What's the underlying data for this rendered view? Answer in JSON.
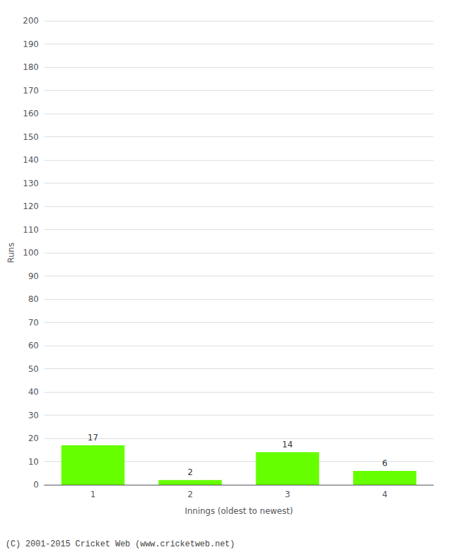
{
  "chart_data": {
    "type": "bar",
    "categories": [
      "1",
      "2",
      "3",
      "4"
    ],
    "values": [
      17,
      2,
      14,
      6
    ],
    "color": "#66ff00",
    "xlabel": "Innings (oldest to newest)",
    "ylabel": "Runs",
    "ylim": [
      0,
      200
    ],
    "yticks": [
      0,
      10,
      20,
      30,
      40,
      50,
      60,
      70,
      80,
      90,
      100,
      110,
      120,
      130,
      140,
      150,
      160,
      170,
      180,
      190,
      200
    ],
    "grid": true,
    "data_labels": true,
    "annotations": [
      "(C) 2001-2015 Cricket Web (www.cricketweb.net)"
    ]
  }
}
